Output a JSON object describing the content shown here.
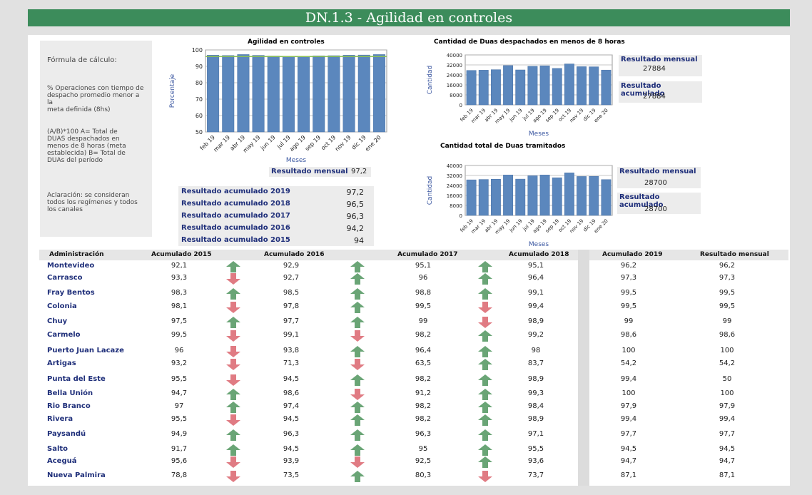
{
  "page": {
    "title": "DN.1.3 - Agilidad en controles"
  },
  "formula": {
    "heading": "Fórmula de cálculo:",
    "lines1": [
      "% Operaciones con tiempo de",
      "despacho promedio menor a la",
      "meta definida (8hs)"
    ],
    "lines2": [
      "(A/B)*100 A= Total de",
      "DUAS despachados en",
      "menos de 8 horas (meta",
      "establecida) B= Total de",
      "DUAs del período"
    ],
    "lines3": [
      "Aclaración: se consideran",
      "todos los regímenes y todos",
      "los canales"
    ]
  },
  "chart_data": [
    {
      "type": "bar",
      "title": "Agilidad en controles",
      "xlabel": "Meses",
      "ylabel": "Porcentaje",
      "categories": [
        "feb 19",
        "mar 19",
        "abr 19",
        "may 19",
        "jun 19",
        "jul 19",
        "ago 19",
        "sep 19",
        "oct 19",
        "nov 19",
        "dic 19",
        "ene 20"
      ],
      "values": [
        96.8,
        96.6,
        97.2,
        96.7,
        96.3,
        96.1,
        96.0,
        96.4,
        96.5,
        96.8,
        96.9,
        97.2
      ],
      "ylim": [
        50,
        100
      ],
      "yticks": [
        "50",
        "60",
        "70",
        "80",
        "90",
        "100"
      ],
      "grid": true,
      "color": "#5b87bd",
      "target_line": {
        "value": 96,
        "color": "#8bbf58"
      }
    },
    {
      "type": "bar",
      "title": "Cantidad de Duas despachados en menos de 8 horas",
      "xlabel": "Meses",
      "ylabel": "Cantidad",
      "categories": [
        "feb 19",
        "mar 19",
        "abr 19",
        "may 19",
        "jun 19",
        "jul 19",
        "ago 19",
        "sep 19",
        "oct 19",
        "nov 19",
        "dic 19",
        "ene 20"
      ],
      "values": [
        27600,
        27800,
        28200,
        31500,
        28000,
        30900,
        31300,
        29200,
        32800,
        30600,
        30500,
        27884
      ],
      "ylim": [
        0,
        40000
      ],
      "yticks": [
        "0",
        "8000",
        "16000",
        "24000",
        "32000",
        "40000"
      ],
      "grid": true,
      "color": "#5b87bd"
    },
    {
      "type": "bar",
      "title": "Cantidad total de Duas tramitados",
      "xlabel": "Meses",
      "ylabel": "Cantidad",
      "categories": [
        "feb 19",
        "mar 19",
        "abr 19",
        "may 19",
        "jun 19",
        "jul 19",
        "ago 19",
        "sep 19",
        "oct 19",
        "nov 19",
        "dic 19",
        "ene 20"
      ],
      "values": [
        28500,
        28800,
        29000,
        32400,
        29100,
        31800,
        32400,
        30200,
        34100,
        31200,
        31300,
        28700
      ],
      "ylim": [
        0,
        40000
      ],
      "yticks": [
        "0",
        "8000",
        "16000",
        "24000",
        "32000",
        "40000"
      ],
      "grid": true,
      "color": "#5b87bd"
    }
  ],
  "result1": {
    "label": "Resultado mensual",
    "value": "97,2"
  },
  "result2": {
    "monthly_label": "Resultado mensual",
    "monthly_value": "27884",
    "acc_label": "Resultado acumulado",
    "acc_value": "27884"
  },
  "result3": {
    "monthly_label": "Resultado mensual",
    "monthly_value": "28700",
    "acc_label": "Resultado acumulado",
    "acc_value": "28700"
  },
  "accumulated": [
    {
      "label": "Resultado acumulado 2019",
      "value": "97,2"
    },
    {
      "label": "Resultado acumulado 2018",
      "value": "96,5"
    },
    {
      "label": "Resultado acumulado 2017",
      "value": "96,3"
    },
    {
      "label": "Resultado acumulado 2016",
      "value": "94,2"
    },
    {
      "label": "Resultado acumulado 2015",
      "value": "94"
    }
  ],
  "table": {
    "headers": [
      "Administración",
      "Acumulado 2015",
      "Acumulado 2016",
      "Acumulado 2017",
      "Acumulado 2018",
      "Acumulado 2019",
      "Resultado mensual"
    ],
    "colors": {
      "up": "#6aa576",
      "down": "#e07b83"
    },
    "rows": [
      {
        "name": "Montevideo",
        "a2015": "92,1",
        "ar1": "up",
        "a2016": "92,9",
        "ar2": "up",
        "a2017": "95,1",
        "ar3": "up",
        "a2018": "95,1",
        "a2019": "96,2",
        "mensual": "96,2"
      },
      {
        "name": "Carrasco",
        "a2015": "93,3",
        "ar1": "down",
        "a2016": "92,7",
        "ar2": "up",
        "a2017": "96",
        "ar3": "up",
        "a2018": "96,4",
        "a2019": "97,3",
        "mensual": "97,3"
      },
      {
        "name": "Fray Bentos",
        "a2015": "98,3",
        "ar1": "up",
        "a2016": "98,5",
        "ar2": "up",
        "a2017": "98,8",
        "ar3": "up",
        "a2018": "99,1",
        "a2019": "99,5",
        "mensual": "99,5"
      },
      {
        "name": "Colonia",
        "a2015": "98,1",
        "ar1": "down",
        "a2016": "97,8",
        "ar2": "up",
        "a2017": "99,5",
        "ar3": "down",
        "a2018": "99,4",
        "a2019": "99,5",
        "mensual": "99,5"
      },
      {
        "name": "Chuy",
        "a2015": "97,5",
        "ar1": "up",
        "a2016": "97,7",
        "ar2": "up",
        "a2017": "99",
        "ar3": "down",
        "a2018": "98,9",
        "a2019": "99",
        "mensual": "99"
      },
      {
        "name": "Carmelo",
        "a2015": "99,5",
        "ar1": "down",
        "a2016": "99,1",
        "ar2": "down",
        "a2017": "98,2",
        "ar3": "up",
        "a2018": "99,2",
        "a2019": "98,6",
        "mensual": "98,6"
      },
      {
        "name": "Puerto Juan Lacaze",
        "a2015": "96",
        "ar1": "down",
        "a2016": "93,8",
        "ar2": "up",
        "a2017": "96,4",
        "ar3": "up",
        "a2018": "98",
        "a2019": "100",
        "mensual": "100"
      },
      {
        "name": "Artigas",
        "a2015": "93,2",
        "ar1": "down",
        "a2016": "71,3",
        "ar2": "down",
        "a2017": "63,5",
        "ar3": "up",
        "a2018": "83,7",
        "a2019": "54,2",
        "mensual": "54,2"
      },
      {
        "name": "Punta del Este",
        "a2015": "95,5",
        "ar1": "down",
        "a2016": "94,5",
        "ar2": "up",
        "a2017": "98,2",
        "ar3": "up",
        "a2018": "98,9",
        "a2019": "99,4",
        "mensual": "50"
      },
      {
        "name": "Bella Unión",
        "a2015": "94,7",
        "ar1": "up",
        "a2016": "98,6",
        "ar2": "down",
        "a2017": "91,2",
        "ar3": "up",
        "a2018": "99,3",
        "a2019": "100",
        "mensual": "100"
      },
      {
        "name": "Rio Branco",
        "a2015": "97",
        "ar1": "up",
        "a2016": "97,4",
        "ar2": "up",
        "a2017": "98,2",
        "ar3": "up",
        "a2018": "98,4",
        "a2019": "97,9",
        "mensual": "97,9"
      },
      {
        "name": "Rivera",
        "a2015": "95,5",
        "ar1": "down",
        "a2016": "94,5",
        "ar2": "up",
        "a2017": "98,2",
        "ar3": "up",
        "a2018": "98,9",
        "a2019": "99,4",
        "mensual": "99,4"
      },
      {
        "name": "Paysandú",
        "a2015": "94,9",
        "ar1": "up",
        "a2016": "96,3",
        "ar2": "up",
        "a2017": "96,3",
        "ar3": "up",
        "a2018": "97,1",
        "a2019": "97,7",
        "mensual": "97,7"
      },
      {
        "name": "Salto",
        "a2015": "91,7",
        "ar1": "up",
        "a2016": "94,5",
        "ar2": "up",
        "a2017": "95",
        "ar3": "up",
        "a2018": "95,5",
        "a2019": "94,5",
        "mensual": "94,5"
      },
      {
        "name": "Aceguá",
        "a2015": "95,6",
        "ar1": "down",
        "a2016": "93,9",
        "ar2": "down",
        "a2017": "92,5",
        "ar3": "up",
        "a2018": "93,6",
        "a2019": "94,7",
        "mensual": "94,7"
      },
      {
        "name": "Nueva Palmira",
        "a2015": "78,8",
        "ar1": "down",
        "a2016": "73,5",
        "ar2": "up",
        "a2017": "80,3",
        "ar3": "down",
        "a2018": "73,7",
        "a2019": "87,1",
        "mensual": "87,1"
      }
    ]
  }
}
